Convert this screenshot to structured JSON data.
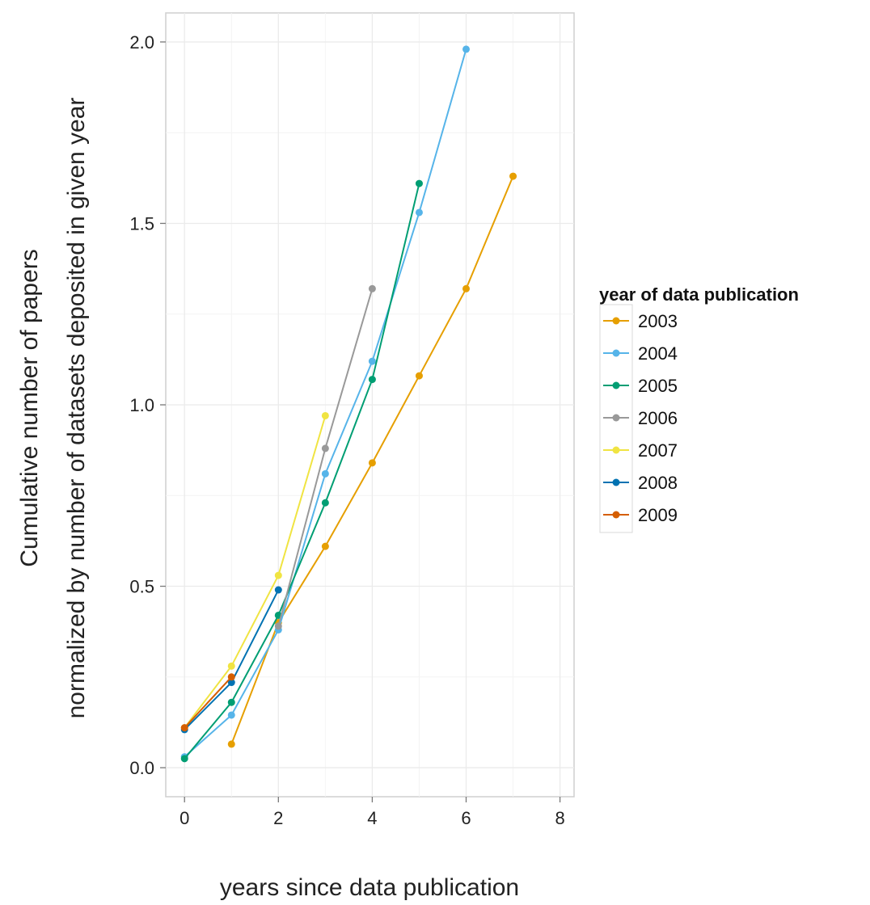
{
  "chart_data": {
    "type": "line",
    "xlabel": "years since data publication",
    "ylabel_line1": "Cumulative number of papers",
    "ylabel_line2": "normalized by number of datasets deposited in given year",
    "xlim": [
      -0.4,
      8.3
    ],
    "ylim": [
      -0.08,
      2.08
    ],
    "x_ticks": [
      0,
      2,
      4,
      6,
      8
    ],
    "x_tick_labels": [
      "0",
      "2",
      "4",
      "6",
      "8"
    ],
    "y_ticks": [
      0.0,
      0.5,
      1.0,
      1.5,
      2.0
    ],
    "y_tick_labels": [
      "0.0",
      "0.5",
      "1.0",
      "1.5",
      "2.0"
    ],
    "grid": true,
    "legend": {
      "title": "year of data publication",
      "position": "right"
    },
    "series": [
      {
        "name": "2003",
        "color": "#E69F00",
        "x": [
          1,
          2,
          3,
          4,
          5,
          6,
          7
        ],
        "y": [
          0.065,
          0.4,
          0.61,
          0.84,
          1.08,
          1.32,
          1.63
        ]
      },
      {
        "name": "2004",
        "color": "#56B4E9",
        "x": [
          0,
          1,
          2,
          3,
          4,
          5,
          6
        ],
        "y": [
          0.03,
          0.145,
          0.38,
          0.81,
          1.12,
          1.53,
          1.98
        ]
      },
      {
        "name": "2005",
        "color": "#009E73",
        "x": [
          0,
          1,
          2,
          3,
          4,
          5
        ],
        "y": [
          0.025,
          0.18,
          0.42,
          0.73,
          1.07,
          1.61
        ]
      },
      {
        "name": "2006",
        "color": "#999999",
        "x": [
          2,
          3,
          4
        ],
        "y": [
          0.39,
          0.88,
          1.32
        ]
      },
      {
        "name": "2007",
        "color": "#F0E442",
        "x": [
          0,
          1,
          2,
          3
        ],
        "y": [
          0.11,
          0.28,
          0.53,
          0.97
        ]
      },
      {
        "name": "2008",
        "color": "#0072B2",
        "x": [
          0,
          1,
          2
        ],
        "y": [
          0.105,
          0.235,
          0.49
        ]
      },
      {
        "name": "2009",
        "color": "#D55E00",
        "x": [
          0,
          1
        ],
        "y": [
          0.11,
          0.25
        ]
      }
    ]
  }
}
